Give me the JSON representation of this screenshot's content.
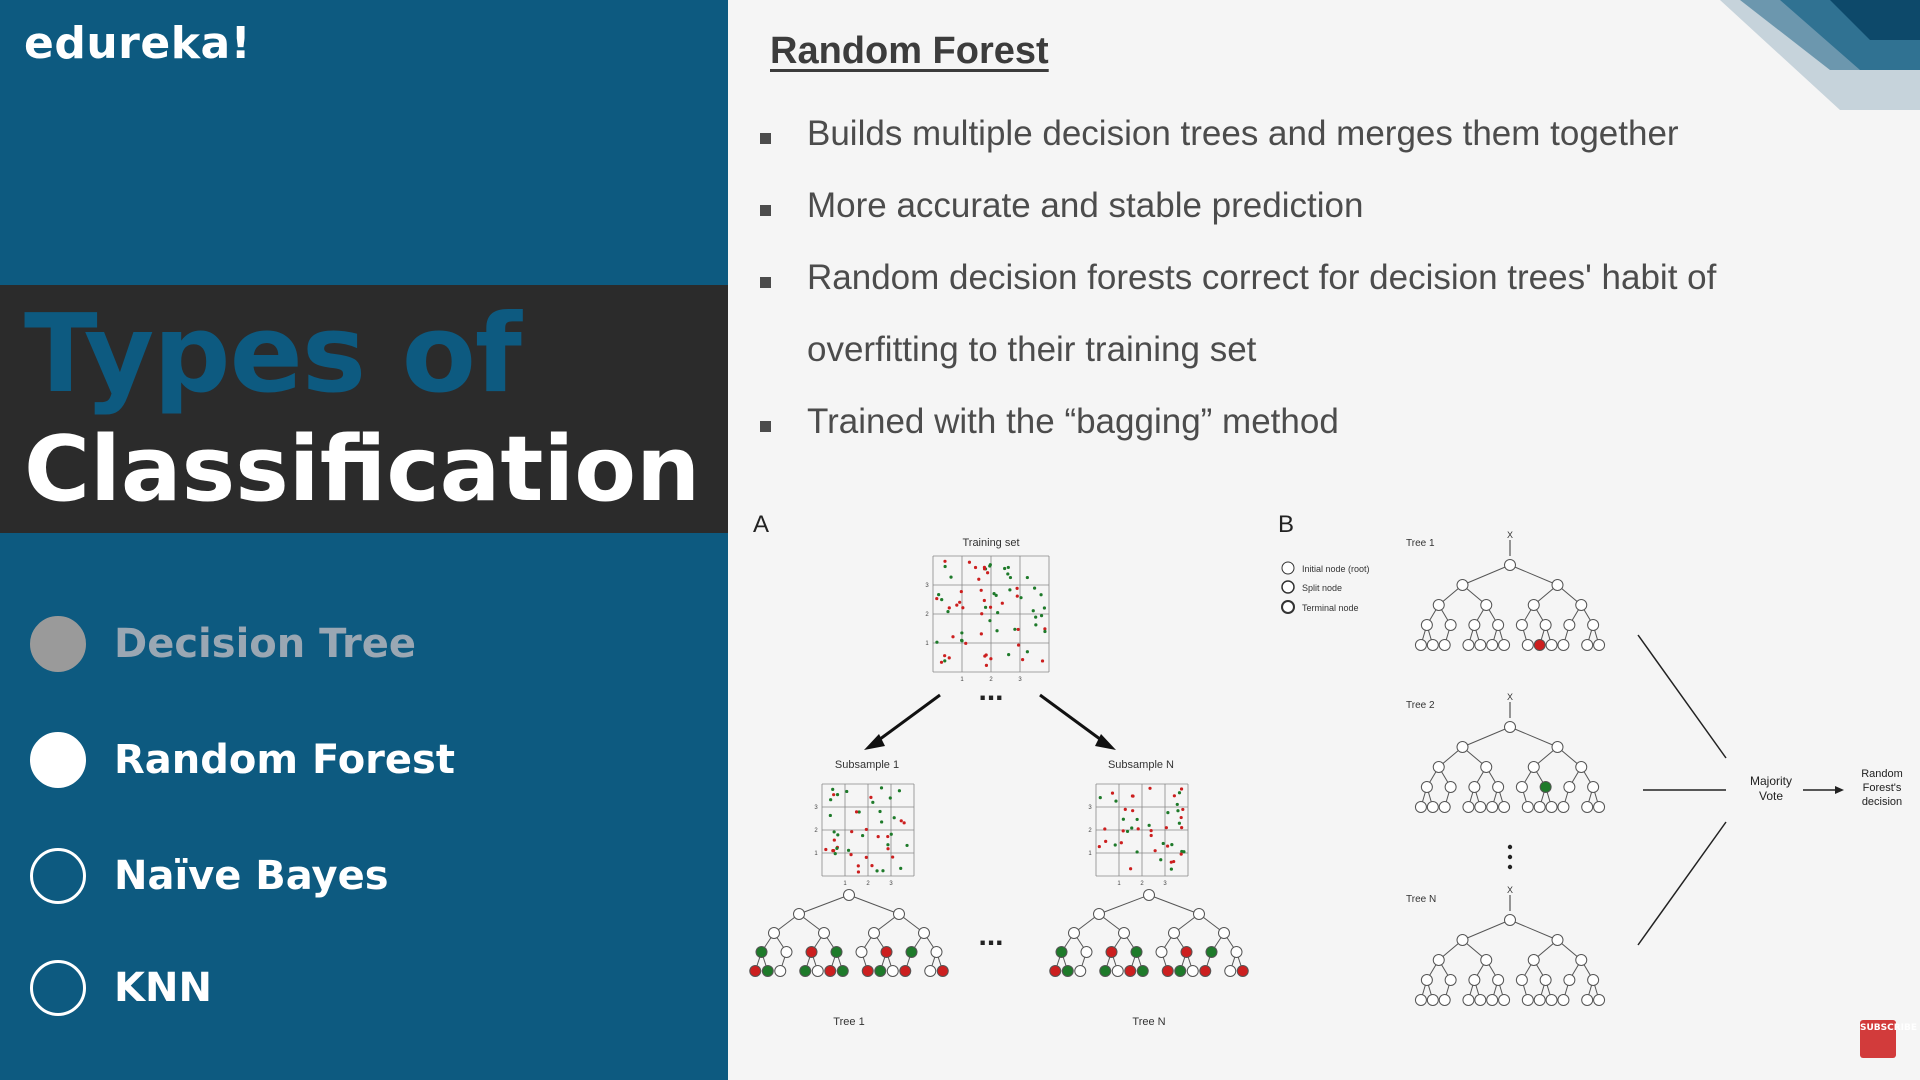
{
  "brand": {
    "logo": "edureka!"
  },
  "sidebar": {
    "title_line1": "Types of",
    "title_line2": "Classification",
    "topics": [
      {
        "label": "Decision Tree",
        "state": "done"
      },
      {
        "label": "Random Forest",
        "state": "current"
      },
      {
        "label": "Naïve Bayes",
        "state": "upcoming"
      },
      {
        "label": "KNN",
        "state": "upcoming"
      }
    ]
  },
  "content": {
    "heading": "Random Forest",
    "bullets": [
      "Builds multiple decision trees and merges them together",
      "More accurate and stable prediction",
      "Random decision forests correct for decision trees' habit of overfitting to their training set",
      "Trained with the “bagging” method"
    ]
  },
  "figure": {
    "panel_a": {
      "letter": "A",
      "training_set": "Training set",
      "subsample_1": "Subsample 1",
      "subsample_n": "Subsample N",
      "tree_1": "Tree 1",
      "tree_n": "Tree N",
      "ellipsis": "...",
      "axis_ticks": [
        "1",
        "2",
        "3"
      ]
    },
    "panel_b": {
      "letter": "B",
      "legend": [
        "Initial node (root)",
        "Split node",
        "Terminal node"
      ],
      "tree_1": "Tree 1",
      "tree_2": "Tree 2",
      "tree_n": "Tree N",
      "root_marker": "X",
      "majority_vote": [
        "Majority",
        "Vote"
      ],
      "decision": [
        "Random",
        "Forest's",
        "decision"
      ]
    }
  },
  "badge": {
    "label": "SUBSCRIBE"
  },
  "colors": {
    "sidebar_bg": "#0d5a80",
    "title_band": "#2b2b2b",
    "node_red": "#cc1f1f",
    "node_green": "#1e7a2a"
  }
}
